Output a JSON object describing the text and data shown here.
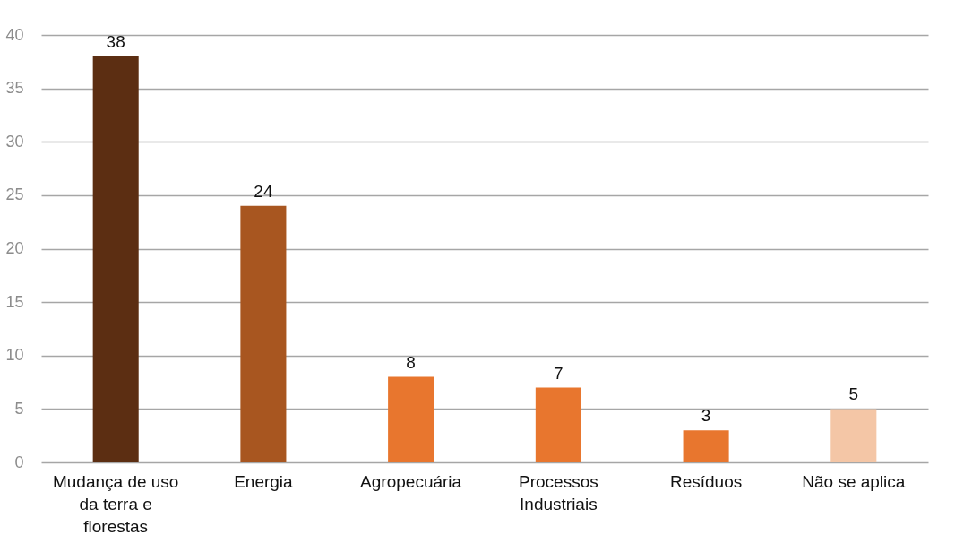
{
  "chart_data": {
    "type": "bar",
    "categories": [
      "Mudança de uso da terra e florestas",
      "Energia",
      "Agropecuária",
      "Processos Industriais",
      "Resíduos",
      "Não se aplica"
    ],
    "values": [
      38,
      24,
      8,
      7,
      3,
      5
    ],
    "colors": [
      "#5c2e12",
      "#a85620",
      "#e8762e",
      "#e8762e",
      "#e8762e",
      "#f4c6a6"
    ],
    "ylim": [
      0,
      40
    ],
    "yticks": [
      0,
      5,
      10,
      15,
      20,
      25,
      30,
      35,
      40
    ],
    "grid": "y",
    "data_labels": true
  }
}
